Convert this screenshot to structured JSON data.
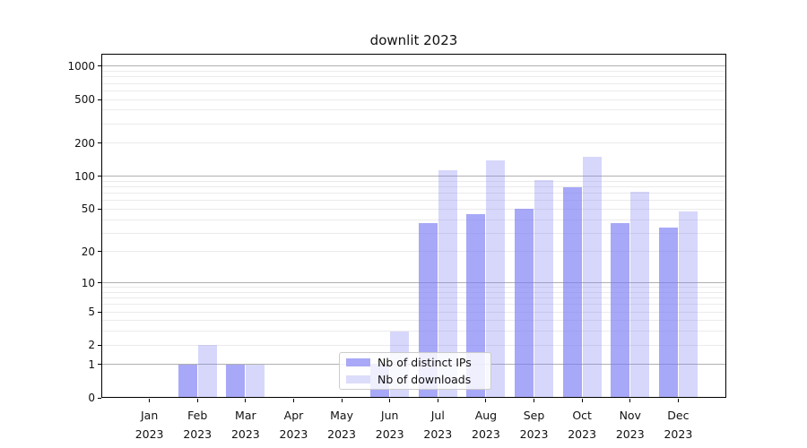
{
  "title": "downlit 2023",
  "legend": {
    "items": [
      {
        "label": "Nb of distinct IPs",
        "swatch_color": "#a9a9f7"
      },
      {
        "label": "Nb of downloads",
        "swatch_color": "#dcdcfb"
      }
    ]
  },
  "chart_data": {
    "type": "bar",
    "title": "downlit 2023",
    "categories": [
      "Jan",
      "Feb",
      "Mar",
      "Apr",
      "May",
      "Jun",
      "Jul",
      "Aug",
      "Sep",
      "Oct",
      "Nov",
      "Dec"
    ],
    "x_year_label": "2023",
    "series": [
      {
        "name": "Nb of distinct IPs",
        "color": "rgba(121,121,244,0.65)",
        "values": [
          0,
          1,
          1,
          0,
          0,
          1,
          37,
          45,
          50,
          80,
          37,
          34
        ]
      },
      {
        "name": "Nb of downloads",
        "color": "rgba(121,121,244,0.30)",
        "values": [
          0,
          2,
          1,
          0,
          0,
          3,
          113,
          140,
          93,
          150,
          72,
          48
        ]
      }
    ],
    "xlabel": "",
    "ylabel": "",
    "y_scale": "log1p",
    "ylim": [
      0,
      1300
    ],
    "y_tick_values": [
      0,
      1,
      2,
      5,
      10,
      20,
      50,
      100,
      200,
      500,
      1000
    ],
    "grid": {
      "on": true,
      "major_values": [
        1,
        10,
        100,
        1000
      ],
      "minor_values": [
        2,
        3,
        4,
        5,
        6,
        7,
        8,
        9,
        20,
        30,
        40,
        50,
        60,
        70,
        80,
        90,
        200,
        300,
        400,
        500,
        600,
        700,
        800,
        900
      ],
      "major_color": "#b0b0b0",
      "minor_color": "#ebebeb"
    },
    "legend_position": "lower center inside"
  }
}
